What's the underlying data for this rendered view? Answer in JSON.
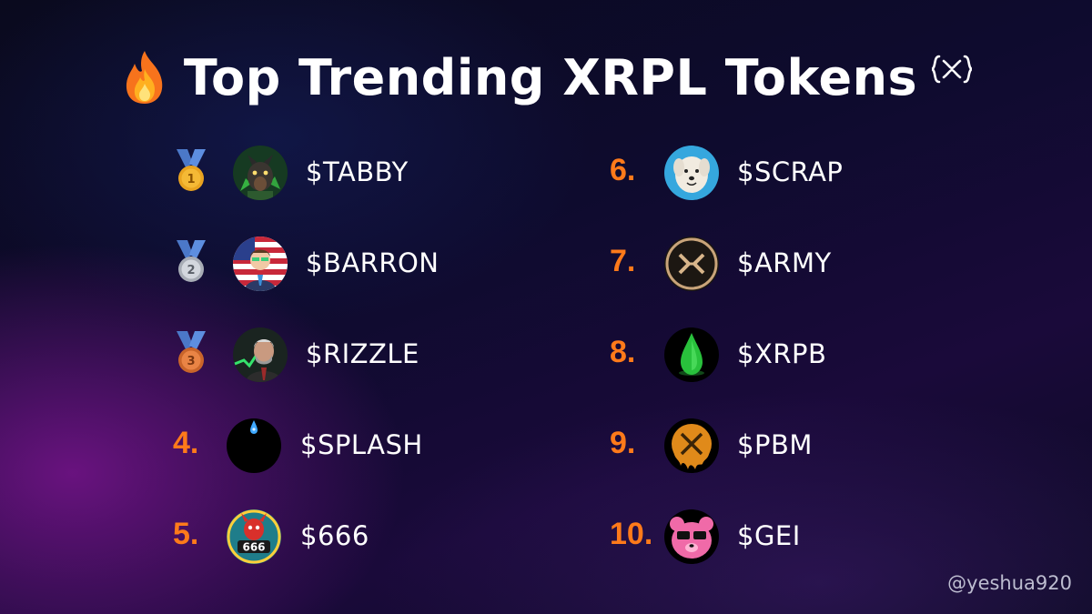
{
  "title": "Top Trending XRPL Tokens",
  "handle": "@yeshua920",
  "accent_color": "#ff7a1a",
  "left_tokens": [
    {
      "rank": "1",
      "medal": "gold-medal-icon",
      "ticker": "$TABBY"
    },
    {
      "rank": "2",
      "medal": "silver-medal-icon",
      "ticker": "$BARRON"
    },
    {
      "rank": "3",
      "medal": "bronze-medal-icon",
      "ticker": "$RIZZLE"
    },
    {
      "rank": "4.",
      "ticker": "$SPLASH"
    },
    {
      "rank": "5.",
      "ticker": "$666"
    }
  ],
  "right_tokens": [
    {
      "rank": "6.",
      "ticker": "$SCRAP"
    },
    {
      "rank": "7.",
      "ticker": "$ARMY"
    },
    {
      "rank": "8.",
      "ticker": "$XRPB"
    },
    {
      "rank": "9.",
      "ticker": "$PBM"
    },
    {
      "rank": "10.",
      "ticker": "$GEI"
    }
  ],
  "avatar_badges": {
    "barron": "",
    "six": "666"
  }
}
